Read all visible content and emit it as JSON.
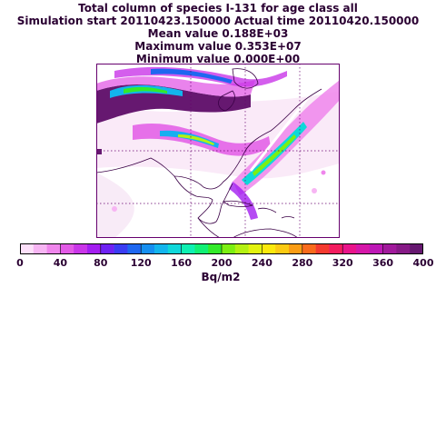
{
  "header": {
    "line1": "Total column of species I-131   for age class all",
    "line2": "Simulation start 20110423.150000    Actual time 20110420.150000",
    "line3": "Mean value  0.188E+03",
    "line4": "Maximum value  0.353E+07",
    "line5": "Minimum value  0.000E+00"
  },
  "colorbar": {
    "tick_labels": [
      "0",
      "40",
      "80",
      "120",
      "160",
      "200",
      "240",
      "280",
      "320",
      "360",
      "400"
    ],
    "units": "Bq/m2",
    "colors": [
      "#fde0fa",
      "#f7b5f3",
      "#ef86ec",
      "#e25ae6",
      "#c936e8",
      "#a31ef0",
      "#6e22f3",
      "#3a3cf2",
      "#1f67f0",
      "#168ff0",
      "#13b5ed",
      "#10d8da",
      "#0ef0b2",
      "#10f075",
      "#33ea2a",
      "#7cef12",
      "#b4f112",
      "#e3f30f",
      "#fbe90c",
      "#fbca12",
      "#fa9c14",
      "#f96b1c",
      "#f43a2f",
      "#f21c5f",
      "#e9148a",
      "#d517a8",
      "#bd18b6",
      "#a11a9c",
      "#861a86",
      "#661870"
    ]
  }
}
